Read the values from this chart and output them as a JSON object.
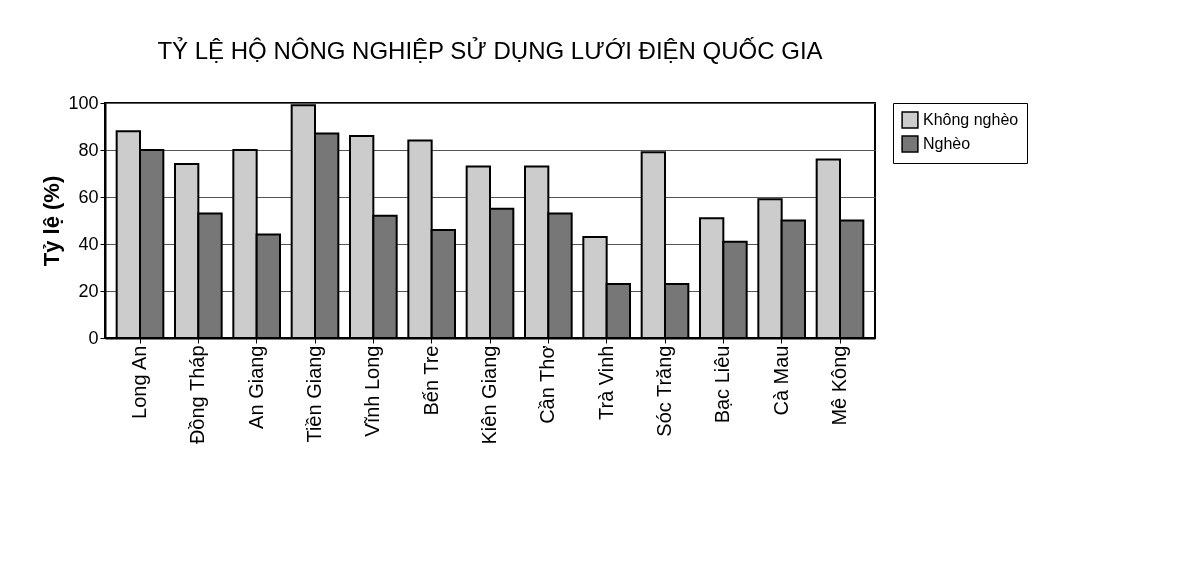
{
  "chart_data": {
    "type": "bar",
    "title": "TỶ LỆ HỘ NÔNG NGHIỆP SỬ DỤNG LƯỚI ĐIỆN QUỐC GIA",
    "ylabel": "Tỷ lệ (%)",
    "categories": [
      "Long An",
      "Đồng Tháp",
      "An Giang",
      "Tiền Giang",
      "Vĩnh Long",
      "Bến Tre",
      "Kiên Giang",
      "Cần Thơ",
      "Trà Vinh",
      "Sóc Trăng",
      "Bạc Liêu",
      "Cà Mau",
      "Mê Kông"
    ],
    "series": [
      {
        "name": "Không nghèo",
        "color": "#cccccc",
        "values": [
          88,
          74,
          80,
          99,
          86,
          84,
          73,
          73,
          43,
          79,
          51,
          59,
          76
        ]
      },
      {
        "name": "Nghèo",
        "color": "#777777",
        "values": [
          80,
          53,
          44,
          87,
          52,
          46,
          55,
          53,
          23,
          23,
          41,
          50,
          50
        ]
      }
    ],
    "ylim": [
      0,
      100
    ],
    "yticks": [
      0,
      20,
      40,
      60,
      80,
      100
    ],
    "grid": "y",
    "legend": "right"
  }
}
